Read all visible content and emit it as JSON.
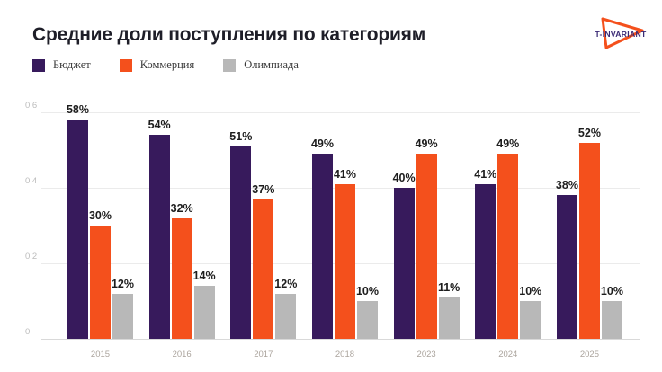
{
  "title": "Средние доли поступления по категориям",
  "logo": {
    "text": "T-INVARIANT",
    "triangle_color": "#F4501C",
    "text_color": "#3A2A75"
  },
  "legend": [
    {
      "label": "Бюджет",
      "color": "#371A5C"
    },
    {
      "label": "Коммерция",
      "color": "#F4501C"
    },
    {
      "label": "Олимпиада",
      "color": "#B8B8B8"
    }
  ],
  "chart_data": {
    "type": "bar",
    "title": "Средние доли поступления по категориям",
    "categories": [
      "2015",
      "2016",
      "2017",
      "2018",
      "2023",
      "2024",
      "2025"
    ],
    "series": [
      {
        "name": "Бюджет",
        "key": "budget",
        "color": "#371A5C",
        "values": [
          58,
          54,
          51,
          49,
          40,
          41,
          38
        ]
      },
      {
        "name": "Коммерция",
        "key": "commerce",
        "color": "#F4501C",
        "values": [
          30,
          32,
          37,
          41,
          49,
          49,
          52
        ]
      },
      {
        "name": "Олимпиада",
        "key": "olympiad",
        "color": "#B8B8B8",
        "values": [
          12,
          14,
          12,
          10,
          11,
          10,
          10
        ]
      }
    ],
    "value_suffix": "%",
    "ylabel": "",
    "xlabel": "",
    "ylim": [
      0,
      0.6
    ],
    "y_ticks": [
      "0.6",
      "0.4",
      "0.2",
      "0"
    ],
    "grid": true,
    "legend_position": "top-left"
  }
}
